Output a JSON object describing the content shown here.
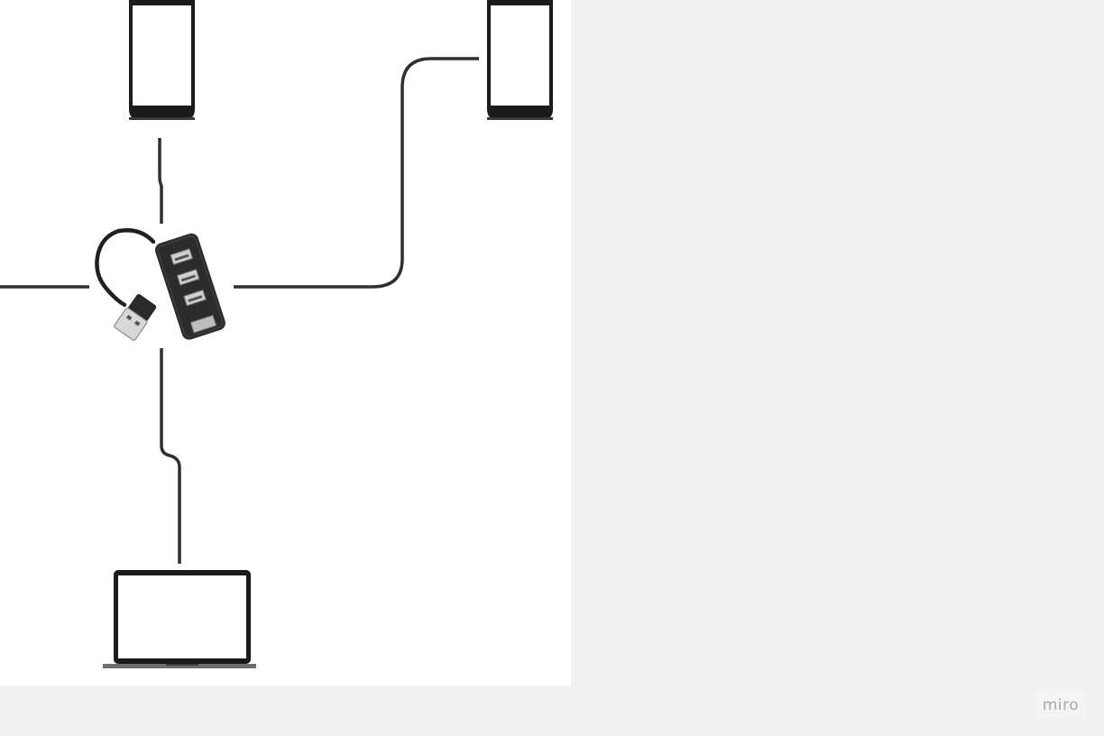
{
  "canvas": {
    "background": "#f1f1f1",
    "board_background": "#ffffff",
    "connector_color": "#2f2f2f"
  },
  "nodes": [
    {
      "id": "phone-left",
      "kind": "smartphone",
      "icon": "smartphone-icon"
    },
    {
      "id": "phone-right",
      "kind": "smartphone",
      "icon": "smartphone-icon"
    },
    {
      "id": "usb-hub",
      "kind": "usb-hub",
      "icon": "usb-hub-icon"
    },
    {
      "id": "laptop",
      "kind": "laptop",
      "icon": "laptop-icon"
    }
  ],
  "connections": [
    {
      "from": "usb-hub",
      "to": "phone-left"
    },
    {
      "from": "usb-hub",
      "to": "phone-right"
    },
    {
      "from": "usb-hub",
      "to": "laptop"
    },
    {
      "from": "usb-hub",
      "to": "off-board-left"
    }
  ],
  "watermark": {
    "text": "miro"
  }
}
